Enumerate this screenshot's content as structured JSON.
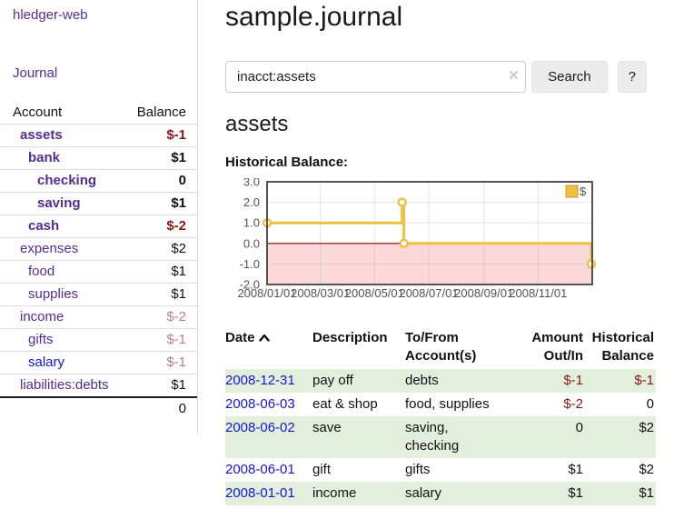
{
  "sidebar": {
    "brand": "hledger-web",
    "journal_link": "Journal",
    "accounts_header": {
      "account": "Account",
      "balance": "Balance"
    },
    "accounts": [
      {
        "name": "assets",
        "balance": "$-1"
      },
      {
        "name": "bank",
        "balance": "$1"
      },
      {
        "name": "checking",
        "balance": "0"
      },
      {
        "name": "saving",
        "balance": "$1"
      },
      {
        "name": "cash",
        "balance": "$-2"
      },
      {
        "name": "expenses",
        "balance": "$2"
      },
      {
        "name": "food",
        "balance": "$1"
      },
      {
        "name": "supplies",
        "balance": "$1"
      },
      {
        "name": "income",
        "balance": "$-2"
      },
      {
        "name": "gifts",
        "balance": "$-1"
      },
      {
        "name": "salary",
        "balance": "$-1"
      },
      {
        "name": "liabilities:debts",
        "balance": "$1"
      }
    ],
    "total": "0"
  },
  "header": {
    "title": "sample.journal"
  },
  "search": {
    "query": "inacct:assets",
    "clear_icon": "×",
    "search_button": "Search",
    "help_button": "?"
  },
  "account_page": {
    "heading": "assets",
    "chart_title": "Historical Balance:"
  },
  "chart_data": {
    "type": "line",
    "step": true,
    "title": "Historical Balance",
    "grid": true,
    "legend_position": "top-right",
    "legend": [
      {
        "name": "$",
        "color": "#edc240"
      }
    ],
    "x_range": [
      "2008-01-01",
      "2009-01-01"
    ],
    "ylim": [
      -2,
      3
    ],
    "y_ticks": [
      {
        "value": 3,
        "label": "3.0"
      },
      {
        "value": 2,
        "label": "2.0"
      },
      {
        "value": 1,
        "label": "1.0"
      },
      {
        "value": 0,
        "label": "0.0"
      },
      {
        "value": -1,
        "label": "-1.0"
      },
      {
        "value": -2,
        "label": "-2.0"
      }
    ],
    "x_ticks": [
      {
        "date": "2008-01-01",
        "label": "2008/01/01"
      },
      {
        "date": "2008-03-01",
        "label": "2008/03/01"
      },
      {
        "date": "2008-05-01",
        "label": "2008/05/01"
      },
      {
        "date": "2008-07-01",
        "label": "2008/07/01"
      },
      {
        "date": "2008-09-01",
        "label": "2008/09/01"
      },
      {
        "date": "2008-11-01",
        "label": "2008/11/01"
      }
    ],
    "series": [
      {
        "name": "$",
        "color": "#edc240",
        "points": [
          [
            "2008-01-01",
            1
          ],
          [
            "2008-06-01",
            2
          ],
          [
            "2008-06-03",
            0
          ],
          [
            "2008-12-31",
            -1
          ]
        ]
      }
    ],
    "zero_line_color": "#8b0000",
    "negative_region_color": "#fbd9d9"
  },
  "register": {
    "headers": {
      "date": "Date",
      "description": "Description",
      "accounts": "To/From Account(s)",
      "amount": "Amount Out/In",
      "balance": "Historical Balance"
    },
    "rows": [
      {
        "date": "2008-12-31",
        "description": "pay off",
        "accounts": "debts",
        "amount": "$-1",
        "balance": "$-1"
      },
      {
        "date": "2008-06-03",
        "description": "eat & shop",
        "accounts": "food, supplies",
        "amount": "$-2",
        "balance": "0"
      },
      {
        "date": "2008-06-02",
        "description": "save",
        "accounts": "saving, checking",
        "amount": "0",
        "balance": "$2"
      },
      {
        "date": "2008-06-01",
        "description": "gift",
        "accounts": "gifts",
        "amount": "$1",
        "balance": "$2"
      },
      {
        "date": "2008-01-01",
        "description": "income",
        "accounts": "salary",
        "amount": "$1",
        "balance": "$1"
      }
    ]
  }
}
